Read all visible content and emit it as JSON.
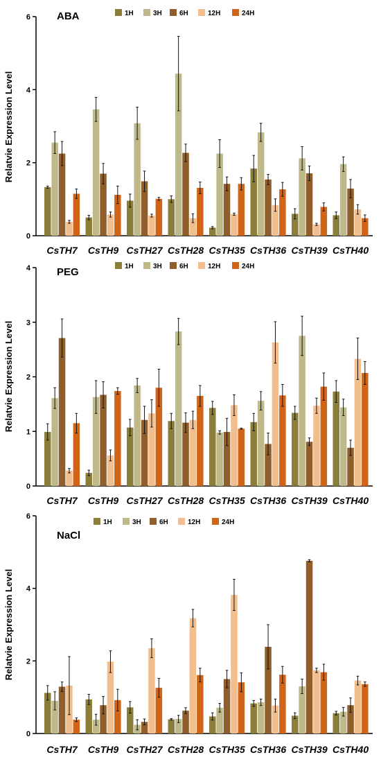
{
  "chart_data": [
    {
      "type": "bar",
      "title": "ABA",
      "ylabel": "Relatvie Expression Level",
      "ylim": [
        0,
        6
      ],
      "yticks": [
        0,
        2,
        4,
        6
      ],
      "legend_position": "top",
      "categories": [
        "CsTH7",
        "CsTH9",
        "CsTH27",
        "CsTH28",
        "CsTH35",
        "CsTH36",
        "CsTH39",
        "CsTH40"
      ],
      "series": [
        {
          "name": "1H",
          "color": "#8B7D3A",
          "values": [
            1.33,
            0.5,
            0.96,
            1.0,
            0.22,
            1.84,
            0.6,
            0.56
          ],
          "errors": [
            0.03,
            0.06,
            0.18,
            0.09,
            0.03,
            0.36,
            0.14,
            0.09
          ]
        },
        {
          "name": "3H",
          "color": "#BFB98A",
          "values": [
            2.55,
            3.46,
            3.08,
            4.44,
            2.25,
            2.83,
            2.12,
            1.96
          ],
          "errors": [
            0.3,
            0.33,
            0.44,
            1.02,
            0.38,
            0.25,
            0.32,
            0.2
          ]
        },
        {
          "name": "6H",
          "color": "#8F5E2A",
          "values": [
            2.25,
            1.7,
            1.49,
            2.27,
            1.42,
            1.54,
            1.71,
            1.29
          ],
          "errors": [
            0.33,
            0.28,
            0.28,
            0.24,
            0.19,
            0.14,
            0.2,
            0.25
          ]
        },
        {
          "name": "12H",
          "color": "#F2BE8E",
          "values": [
            0.38,
            0.58,
            0.55,
            0.48,
            0.59,
            0.84,
            0.31,
            0.72
          ],
          "errors": [
            0.04,
            0.07,
            0.04,
            0.12,
            0.03,
            0.17,
            0.03,
            0.13
          ]
        },
        {
          "name": "24H",
          "color": "#D0651A",
          "values": [
            1.15,
            1.12,
            1.01,
            1.31,
            1.42,
            1.27,
            0.79,
            0.48
          ],
          "errors": [
            0.13,
            0.24,
            0.04,
            0.16,
            0.17,
            0.19,
            0.11,
            0.09
          ]
        }
      ]
    },
    {
      "type": "bar",
      "title": "PEG",
      "ylabel": "Relatvie Expression Level",
      "ylim": [
        0,
        4
      ],
      "yticks": [
        0,
        1,
        2,
        3,
        4
      ],
      "legend_position": "top",
      "categories": [
        "CsTH7",
        "CsTH9",
        "CsTH27",
        "CsTH28",
        "CsTH35",
        "CsTH36",
        "CsTH39",
        "CsTH40"
      ],
      "series": [
        {
          "name": "1H",
          "color": "#8B7D3A",
          "values": [
            0.99,
            0.24,
            1.07,
            1.19,
            1.43,
            1.17,
            1.34,
            1.73
          ],
          "errors": [
            0.15,
            0.05,
            0.15,
            0.14,
            0.12,
            0.16,
            0.12,
            0.2
          ]
        },
        {
          "name": "3H",
          "color": "#BFB98A",
          "values": [
            1.61,
            1.63,
            1.84,
            2.83,
            0.98,
            1.56,
            2.75,
            1.44
          ],
          "errors": [
            0.19,
            0.3,
            0.13,
            0.24,
            0.03,
            0.17,
            0.36,
            0.15
          ]
        },
        {
          "name": "6H",
          "color": "#8F5E2A",
          "values": [
            2.71,
            1.67,
            1.21,
            1.16,
            0.99,
            0.77,
            0.81,
            0.7
          ],
          "errors": [
            0.35,
            0.24,
            0.25,
            0.18,
            0.25,
            0.2,
            0.07,
            0.14
          ]
        },
        {
          "name": "12H",
          "color": "#F2BE8E",
          "values": [
            0.28,
            0.56,
            1.33,
            1.21,
            1.48,
            2.63,
            1.47,
            2.33
          ],
          "errors": [
            0.04,
            0.1,
            0.25,
            0.16,
            0.19,
            0.38,
            0.14,
            0.38
          ]
        },
        {
          "name": "24H",
          "color": "#D0651A",
          "values": [
            1.15,
            1.74,
            1.8,
            1.65,
            1.05,
            1.66,
            1.82,
            2.07
          ],
          "errors": [
            0.18,
            0.06,
            0.34,
            0.19,
            0.01,
            0.2,
            0.25,
            0.21
          ]
        }
      ]
    },
    {
      "type": "bar",
      "title": "NaCl",
      "ylabel": "Relatvie Expression Level",
      "ylim": [
        0,
        6
      ],
      "yticks": [
        0,
        2,
        4,
        6
      ],
      "legend_position": "top",
      "categories": [
        "CsTH7",
        "CsTH9",
        "CsTH27",
        "CsTH28",
        "CsTH35",
        "CsTH36",
        "CsTH39",
        "CsTH40"
      ],
      "series": [
        {
          "name": "1H",
          "color": "#8B7D3A",
          "values": [
            1.12,
            0.94,
            0.72,
            0.39,
            0.47,
            0.83,
            0.49,
            0.56
          ],
          "errors": [
            0.2,
            0.14,
            0.16,
            0.02,
            0.1,
            0.08,
            0.08,
            0.05
          ]
        },
        {
          "name": "3H",
          "color": "#BFB98A",
          "values": [
            0.9,
            0.38,
            0.24,
            0.4,
            0.71,
            0.86,
            1.3,
            0.6
          ],
          "errors": [
            0.25,
            0.15,
            0.14,
            0.1,
            0.12,
            0.09,
            0.2,
            0.12
          ]
        },
        {
          "name": "6H",
          "color": "#8F5E2A",
          "values": [
            1.29,
            0.78,
            0.32,
            0.63,
            1.5,
            2.39,
            4.76,
            0.78
          ],
          "errors": [
            0.13,
            0.24,
            0.08,
            0.08,
            0.24,
            0.61,
            0.03,
            0.2
          ]
        },
        {
          "name": "12H",
          "color": "#F2BE8E",
          "values": [
            1.32,
            1.98,
            2.35,
            3.18,
            3.82,
            0.77,
            1.74,
            1.46
          ],
          "errors": [
            0.8,
            0.3,
            0.26,
            0.24,
            0.43,
            0.18,
            0.06,
            0.12
          ]
        },
        {
          "name": "24H",
          "color": "#D0651A",
          "values": [
            0.38,
            0.92,
            1.26,
            1.61,
            1.41,
            1.62,
            1.69,
            1.36
          ],
          "errors": [
            0.05,
            0.3,
            0.26,
            0.19,
            0.26,
            0.23,
            0.22,
            0.06
          ]
        }
      ]
    }
  ]
}
